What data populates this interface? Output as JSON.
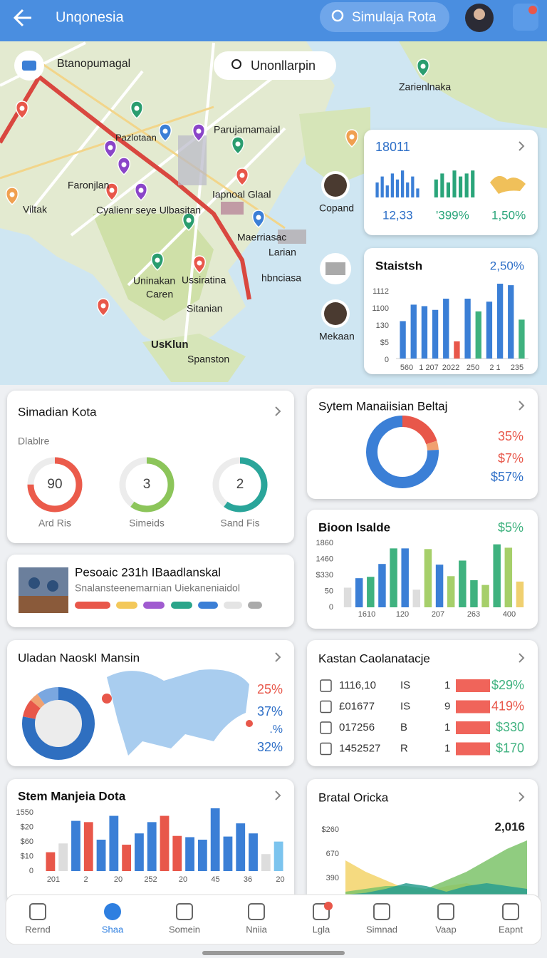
{
  "header": {
    "title": "Unqonesia",
    "search": "Simulaja Rota"
  },
  "map": {
    "place": "Btanopumagal",
    "button": "Unonllarpin",
    "labels": [
      "Zarienlnaka",
      "Parujamamaial",
      "Pazlotaan",
      "Faronjlan",
      "Viltak",
      "Cyalienr seye Ulbasitan",
      "Iapnoal Glaal",
      "Maerriasac",
      "Larian",
      "Uninakan",
      "Ussiratina",
      "Caren",
      "Sitanian",
      "hbnciasa",
      "UsKlun",
      "Spanston",
      "Copand",
      "Mekaan"
    ]
  },
  "stats": {
    "title": "18011",
    "groups": [
      {
        "color": "#3b7fd6",
        "values": [
          5,
          7,
          4,
          8,
          6,
          9,
          5,
          7,
          3
        ]
      },
      {
        "color": "#2aa57a",
        "values": [
          6,
          8,
          5,
          9,
          7,
          8,
          9
        ]
      }
    ],
    "labels": [
      "12,33",
      "'399%",
      "1,50%"
    ]
  },
  "statistics": {
    "title": "Staistsh",
    "badge": "2,50%",
    "y_labels": [
      "1112",
      "1100",
      "130",
      "$5",
      "0"
    ],
    "x_labels": [
      "560",
      "1 207",
      "2022",
      "250",
      "2 1",
      "235"
    ],
    "values": [
      5,
      7.2,
      7,
      6.5,
      8,
      2.3,
      8,
      6.3,
      7.6,
      10,
      9.8,
      5.2
    ],
    "colors": [
      "#3b7fd6",
      "#3b7fd6",
      "#3b7fd6",
      "#3b7fd6",
      "#3b7fd6",
      "#e8574a",
      "#3b7fd6",
      "#3fb27f",
      "#3b7fd6",
      "#3b7fd6",
      "#3b7fd6",
      "#3fb27f"
    ]
  },
  "simadian": {
    "title": "Simadian Kota",
    "subtitle": "Dlablre",
    "rings": [
      {
        "value": 90,
        "label": "Ard Ris",
        "progress": 0.75,
        "color": "#eb5b4b"
      },
      {
        "value": 3,
        "label": "Simeids",
        "progress": 0.6,
        "color": "#8cc55a"
      },
      {
        "value": 2,
        "label": "Sand Fis",
        "progress": 0.6,
        "color": "#2aa59a"
      }
    ]
  },
  "sytem": {
    "title": "Sytem Manaiisian Beltaj",
    "segments": [
      {
        "color": "#e8574a",
        "value": 20
      },
      {
        "color": "#f0a070",
        "value": 4
      },
      {
        "color": "#3b7fd6",
        "value": 76
      }
    ],
    "labels": [
      "35%",
      "$7%",
      "$57%"
    ]
  },
  "pesoaic": {
    "title": "Pesoaic 231h IBaadlanskal",
    "subtitle": "Snalansteenemarnian Uiekaneniaidol"
  },
  "bioon": {
    "title": "Bioon Isalde",
    "badge": "$5%",
    "y_labels": [
      "1860",
      "1460",
      "$330",
      "50",
      "0"
    ],
    "x_labels": [
      "1610",
      "120",
      "207",
      "263",
      "400"
    ],
    "values": [
      2.9,
      4.3,
      4.5,
      6.4,
      8.7,
      8.7,
      2.6,
      8.6,
      6.3,
      4.6,
      6.9,
      4,
      3.3,
      9.3,
      8.8,
      3.8
    ],
    "colors": [
      "#dddddd",
      "#3b7fd6",
      "#3fb27f",
      "#3b7fd6",
      "#3fb27f",
      "#3b7fd6",
      "#dddddd",
      "#a6cf6a",
      "#3b7fd6",
      "#a6cf6a",
      "#3fb27f",
      "#3fb27f",
      "#a6cf6a",
      "#3fb27f",
      "#a6cf6a",
      "#f0d070"
    ]
  },
  "uladan": {
    "title": "Uladan NaoskI Mansin",
    "segments": [
      {
        "color": "#2f6fc0",
        "value": 78
      },
      {
        "color": "#e8574a",
        "value": 8
      },
      {
        "color": "#f0a070",
        "value": 4
      },
      {
        "color": "#7aa7e0",
        "value": 10
      }
    ],
    "labels": [
      "25%",
      "37%",
      ".%",
      "32%"
    ]
  },
  "kastan": {
    "title": "Kastan Caolanatacje",
    "rows": [
      [
        "1116,10",
        "IS",
        "1",
        "$29%"
      ],
      [
        "£01677",
        "IS",
        "9",
        "419%"
      ],
      [
        "017256",
        "B",
        "1",
        "$330"
      ],
      [
        "1452527",
        "R",
        "1",
        "$170"
      ]
    ]
  },
  "stem": {
    "title": "Stem Manjeia Dota",
    "y_labels": [
      "1550",
      "$20",
      "$60",
      "$10",
      "0"
    ],
    "x_labels": [
      "201",
      "2",
      "20",
      "252",
      "20",
      "45",
      "36",
      "20"
    ],
    "values": [
      3,
      4.4,
      8,
      7.8,
      5,
      8.8,
      4.2,
      6,
      7.8,
      8.8,
      5.6,
      5.4,
      5,
      10,
      5.5,
      7.6,
      6,
      2.7,
      4.7
    ],
    "colors": [
      "#e8574a",
      "#dddddd",
      "#3b7fd6",
      "#e8574a",
      "#3b7fd6",
      "#3b7fd6",
      "#e8574a",
      "#3b7fd6",
      "#3b7fd6",
      "#e8574a",
      "#e8574a",
      "#3b7fd6",
      "#3b7fd6",
      "#3b7fd6",
      "#3b7fd6",
      "#3b7fd6",
      "#3b7fd6",
      "#dddddd",
      "#7cc4ee"
    ]
  },
  "bratal": {
    "title": "Bratal Oricka",
    "badge": "2,016",
    "y_labels": [
      "$260",
      "670",
      "390"
    ],
    "areas": [
      {
        "color": "#f3d36a",
        "values": [
          6,
          4,
          2.5,
          1,
          0.5,
          1.5,
          2,
          1,
          0.5,
          0.3
        ]
      },
      {
        "color": "#7cc36a",
        "values": [
          0.5,
          1,
          1.5,
          1.5,
          1,
          2.5,
          4,
          6,
          8,
          9.5
        ]
      },
      {
        "color": "#2a9d8f",
        "values": [
          0,
          0.3,
          1,
          2,
          1.5,
          0.5,
          1.5,
          2,
          1.5,
          1
        ]
      }
    ]
  },
  "nav": [
    "Rernd",
    "Shaa",
    "Somein",
    "Nniia",
    "Lgla",
    "Simnad",
    "Vaap",
    "Eapnt"
  ]
}
